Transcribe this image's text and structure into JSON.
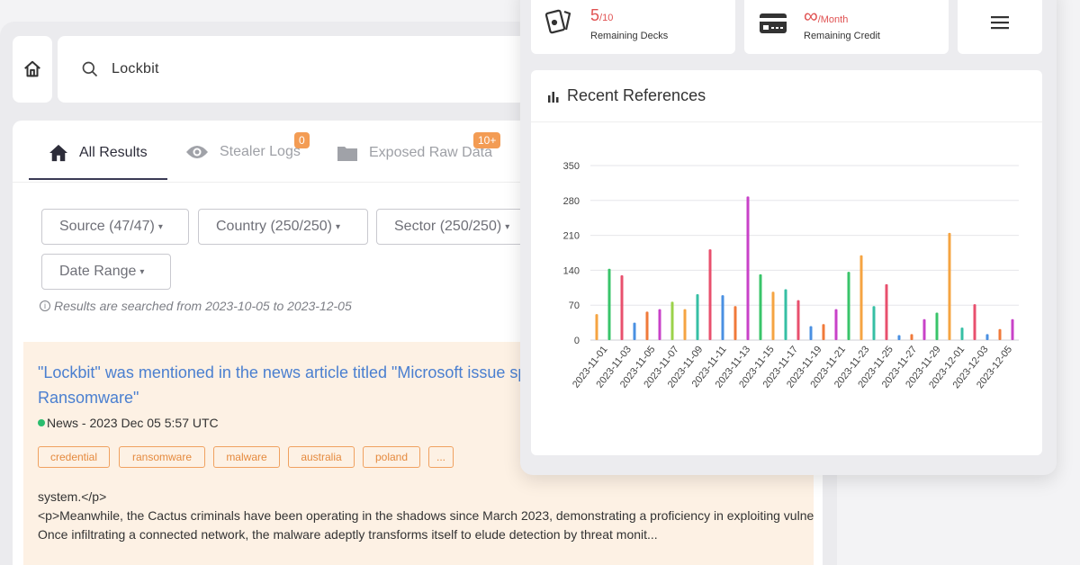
{
  "search": {
    "query": "Lockbit"
  },
  "tabs": [
    {
      "label": "All Results",
      "badge": ""
    },
    {
      "label": "Stealer Logs",
      "badge": "0"
    },
    {
      "label": "Exposed Raw Data",
      "badge": "10+"
    }
  ],
  "filters": {
    "source": "Source (47/47)",
    "country": "Country (250/250)",
    "sector": "Sector (250/250)",
    "date_range": "Date Range"
  },
  "info": "Results are searched from 2023-10-05 to 2023-12-05",
  "result": {
    "title": "\"Lockbit\" was mentioned in the news article titled \"Microsoft issue spreading through DanaBOT Ransomware\"",
    "meta": "News - 2023 Dec 05 5:57 UTC",
    "tags": [
      "credential",
      "ransomware",
      "malware",
      "australia",
      "poland",
      "..."
    ],
    "snippet": [
      "system.</p>",
      "<p>Meanwhile, the Cactus criminals have been operating in the shadows since March 2023, demonstrating a proficiency in exploiting vulne",
      "Once infiltrating a connected network, the malware adeptly transforms itself to elude detection by threat monit..."
    ]
  },
  "stats": {
    "decks_value": "5",
    "decks_total": "/10",
    "decks_label": "Remaining Decks",
    "credit_value": "∞",
    "credit_unit": "/Month",
    "credit_label": "Remaining Credit"
  },
  "icons": [
    "home-icon",
    "search-icon",
    "home-tab-icon",
    "eye-icon",
    "folder-icon",
    "cards-icon",
    "credit-card-icon",
    "menu-icon",
    "bar-chart-icon"
  ],
  "colors": {
    "accent": "#f39c54",
    "link": "#4a7fd0",
    "red": "#e05252"
  },
  "chart_title": "Recent References",
  "chart_data": {
    "type": "bar",
    "title": "Recent References",
    "xlabel": "",
    "ylabel": "",
    "ylim": [
      0,
      350
    ],
    "yticks": [
      0,
      70,
      140,
      210,
      280,
      350
    ],
    "x_tick_labels": [
      "2023-11-01",
      "2023-11-03",
      "2023-11-05",
      "2023-11-07",
      "2023-11-09",
      "2023-11-11",
      "2023-11-13",
      "2023-11-15",
      "2023-11-17",
      "2023-11-19",
      "2023-11-21",
      "2023-11-23",
      "2023-11-25",
      "2023-11-27",
      "2023-11-29",
      "2023-12-01",
      "2023-12-03",
      "2023-12-05"
    ],
    "grid": true,
    "bars": [
      {
        "value": 52,
        "color": "#f5a442"
      },
      {
        "value": 143,
        "color": "#39c46a"
      },
      {
        "value": 130,
        "color": "#e8506e"
      },
      {
        "value": 35,
        "color": "#4a90e2"
      },
      {
        "value": 57,
        "color": "#f07a3a"
      },
      {
        "value": 62,
        "color": "#c842c8"
      },
      {
        "value": 77,
        "color": "#9bd24a"
      },
      {
        "value": 62,
        "color": "#f5a442"
      },
      {
        "value": 92,
        "color": "#36bfa4"
      },
      {
        "value": 182,
        "color": "#e8506e"
      },
      {
        "value": 90,
        "color": "#4a90e2"
      },
      {
        "value": 68,
        "color": "#f07a3a"
      },
      {
        "value": 288,
        "color": "#c842c8"
      },
      {
        "value": 132,
        "color": "#39c46a"
      },
      {
        "value": 97,
        "color": "#f5a442"
      },
      {
        "value": 102,
        "color": "#36bfa4"
      },
      {
        "value": 80,
        "color": "#e8506e"
      },
      {
        "value": 28,
        "color": "#4a90e2"
      },
      {
        "value": 32,
        "color": "#f07a3a"
      },
      {
        "value": 62,
        "color": "#c842c8"
      },
      {
        "value": 137,
        "color": "#39c46a"
      },
      {
        "value": 170,
        "color": "#f5a442"
      },
      {
        "value": 68,
        "color": "#36bfa4"
      },
      {
        "value": 112,
        "color": "#e8506e"
      },
      {
        "value": 10,
        "color": "#4a90e2"
      },
      {
        "value": 12,
        "color": "#f07a3a"
      },
      {
        "value": 42,
        "color": "#c842c8"
      },
      {
        "value": 55,
        "color": "#39c46a"
      },
      {
        "value": 215,
        "color": "#f5a442"
      },
      {
        "value": 25,
        "color": "#36bfa4"
      },
      {
        "value": 72,
        "color": "#e8506e"
      },
      {
        "value": 12,
        "color": "#4a90e2"
      },
      {
        "value": 22,
        "color": "#f07a3a"
      },
      {
        "value": 42,
        "color": "#c842c8"
      }
    ]
  }
}
